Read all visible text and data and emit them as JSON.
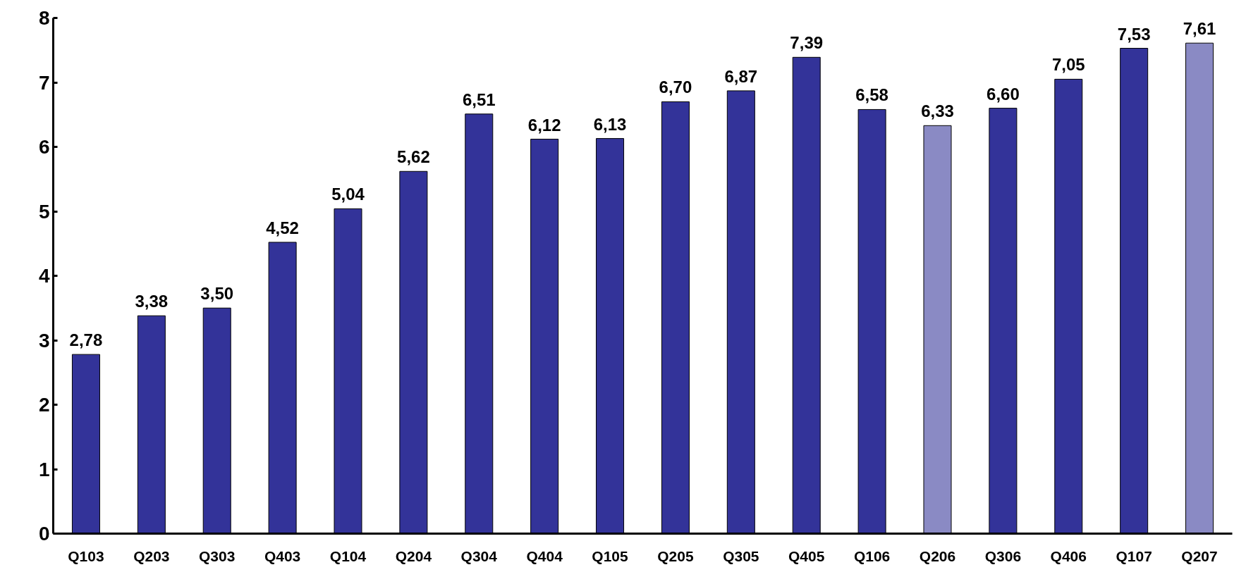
{
  "chart_data": {
    "type": "bar",
    "categories": [
      "Q103",
      "Q203",
      "Q303",
      "Q403",
      "Q104",
      "Q204",
      "Q304",
      "Q404",
      "Q105",
      "Q205",
      "Q305",
      "Q405",
      "Q106",
      "Q206",
      "Q306",
      "Q406",
      "Q107",
      "Q207"
    ],
    "values": [
      2.78,
      3.38,
      3.5,
      4.52,
      5.04,
      5.62,
      6.51,
      6.12,
      6.13,
      6.7,
      6.87,
      7.39,
      6.58,
      6.33,
      6.6,
      7.05,
      7.53,
      7.61
    ],
    "value_labels": [
      "2,78",
      "3,38",
      "3,50",
      "4,52",
      "5,04",
      "5,62",
      "6,51",
      "6,12",
      "6,13",
      "6,70",
      "6,87",
      "7,39",
      "6,58",
      "6,33",
      "6,60",
      "7,05",
      "7,53",
      "7,61"
    ],
    "colors": [
      "#333399",
      "#333399",
      "#333399",
      "#333399",
      "#333399",
      "#333399",
      "#333399",
      "#333399",
      "#333399",
      "#333399",
      "#333399",
      "#333399",
      "#333399",
      "#8a8ac4",
      "#333399",
      "#333399",
      "#333399",
      "#8a8ac4"
    ],
    "ylim": [
      0,
      8
    ],
    "yticks": [
      0,
      1,
      2,
      3,
      4,
      5,
      6,
      7,
      8
    ],
    "grid": false
  }
}
